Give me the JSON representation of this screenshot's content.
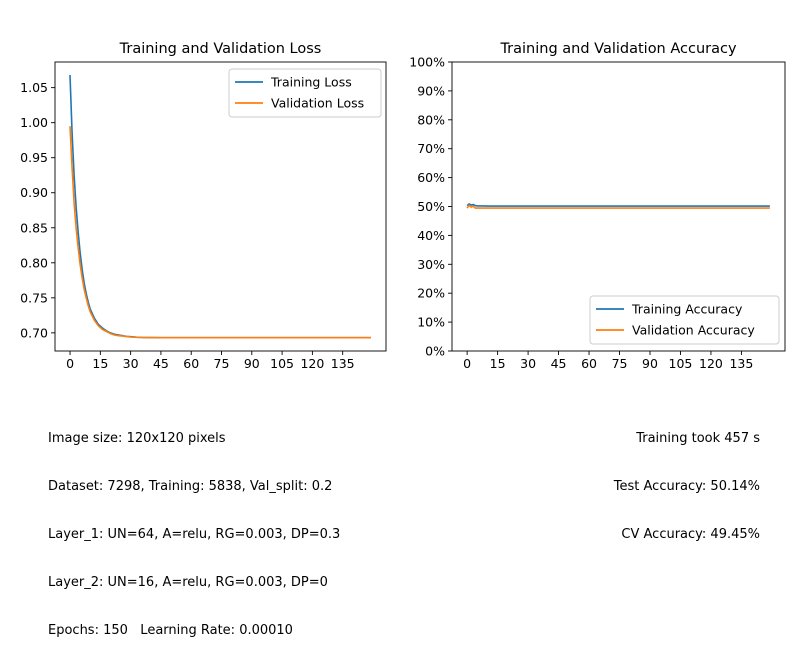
{
  "chart_data": [
    {
      "type": "line",
      "title": "Training and Validation Loss",
      "xlabel": "",
      "ylabel": "",
      "xlim": [
        -7.45,
        156.45
      ],
      "ylim": [
        0.6741,
        1.0866
      ],
      "xticks": [
        0,
        15,
        30,
        45,
        60,
        75,
        90,
        105,
        120,
        135
      ],
      "yticks": [
        0.7,
        0.75,
        0.8,
        0.85,
        0.9,
        0.95,
        1.0,
        1.05
      ],
      "ytick_labels": [
        "0.70",
        "0.75",
        "0.80",
        "0.85",
        "0.90",
        "0.95",
        "1.00",
        "1.05"
      ],
      "legend_position": "top-right",
      "grid": false,
      "series": [
        {
          "name": "Training Loss",
          "color": "#1f77b4",
          "x": [
            0,
            1,
            2,
            3,
            4,
            5,
            6,
            7,
            8,
            9,
            10,
            12,
            14,
            16,
            18,
            20,
            22,
            24,
            26,
            28,
            30,
            33,
            36,
            40,
            45,
            50,
            60,
            70,
            80,
            90,
            100,
            110,
            120,
            130,
            140,
            149
          ],
          "y": [
            1.068,
            0.985,
            0.925,
            0.88,
            0.845,
            0.815,
            0.79,
            0.771,
            0.756,
            0.744,
            0.734,
            0.721,
            0.712,
            0.707,
            0.703,
            0.7,
            0.698,
            0.697,
            0.696,
            0.695,
            0.6945,
            0.6938,
            0.6934,
            0.6932,
            0.6931,
            0.6931,
            0.6931,
            0.6931,
            0.6931,
            0.6931,
            0.6931,
            0.6931,
            0.6931,
            0.6931,
            0.6931,
            0.6931
          ]
        },
        {
          "name": "Validation Loss",
          "color": "#ff7f0e",
          "x": [
            0,
            1,
            2,
            3,
            4,
            5,
            6,
            7,
            8,
            9,
            10,
            12,
            14,
            16,
            18,
            20,
            22,
            24,
            26,
            28,
            30,
            33,
            36,
            40,
            45,
            50,
            60,
            70,
            80,
            90,
            100,
            110,
            120,
            130,
            140,
            149
          ],
          "y": [
            0.995,
            0.935,
            0.885,
            0.85,
            0.822,
            0.798,
            0.778,
            0.762,
            0.75,
            0.739,
            0.73,
            0.718,
            0.71,
            0.705,
            0.702,
            0.699,
            0.697,
            0.696,
            0.6953,
            0.6946,
            0.6941,
            0.6936,
            0.6933,
            0.6932,
            0.6931,
            0.6931,
            0.6931,
            0.6931,
            0.6931,
            0.6931,
            0.6931,
            0.6931,
            0.6931,
            0.6931,
            0.6931,
            0.6931
          ]
        }
      ]
    },
    {
      "type": "line",
      "title": "Training and Validation Accuracy",
      "xlabel": "",
      "ylabel": "",
      "xlim": [
        -7.45,
        156.45
      ],
      "ylim": [
        0,
        1
      ],
      "xticks": [
        0,
        15,
        30,
        45,
        60,
        75,
        90,
        105,
        120,
        135
      ],
      "yticks": [
        0,
        0.1,
        0.2,
        0.3,
        0.4,
        0.5,
        0.6,
        0.7,
        0.8,
        0.9,
        1.0
      ],
      "ytick_labels": [
        "0%",
        "10%",
        "20%",
        "30%",
        "40%",
        "50%",
        "60%",
        "70%",
        "80%",
        "90%",
        "100%"
      ],
      "legend_position": "bottom-right",
      "grid": false,
      "series": [
        {
          "name": "Training Accuracy",
          "color": "#1f77b4",
          "x": [
            0,
            1,
            2,
            3,
            4,
            5,
            6,
            8,
            10,
            20,
            40,
            60,
            80,
            100,
            120,
            140,
            149
          ],
          "y": [
            0.503,
            0.509,
            0.505,
            0.507,
            0.503,
            0.502,
            0.502,
            0.502,
            0.5015,
            0.5015,
            0.5015,
            0.5015,
            0.5015,
            0.5015,
            0.5015,
            0.5015,
            0.5015
          ]
        },
        {
          "name": "Validation Accuracy",
          "color": "#ff7f0e",
          "x": [
            0,
            1,
            2,
            3,
            4,
            5,
            6,
            8,
            10,
            20,
            40,
            60,
            80,
            100,
            120,
            140,
            149
          ],
          "y": [
            0.4945,
            0.504,
            0.498,
            0.501,
            0.4945,
            0.4945,
            0.4945,
            0.4945,
            0.4945,
            0.4945,
            0.4945,
            0.4945,
            0.4945,
            0.4945,
            0.4945,
            0.4945,
            0.4945
          ]
        }
      ]
    }
  ],
  "info_left": [
    "Image size: 120x120 pixels",
    "Dataset: 7298, Training: 5838, Val_split: 0.2",
    "Layer_1: UN=64, A=relu, RG=0.003, DP=0.3",
    "Layer_2: UN=16, A=relu, RG=0.003, DP=0",
    "Epochs: 150   Learning Rate: 0.00010"
  ],
  "info_right": [
    "Training took 457 s",
    "Test Accuracy: 50.14%",
    "CV Accuracy: 49.45%"
  ]
}
